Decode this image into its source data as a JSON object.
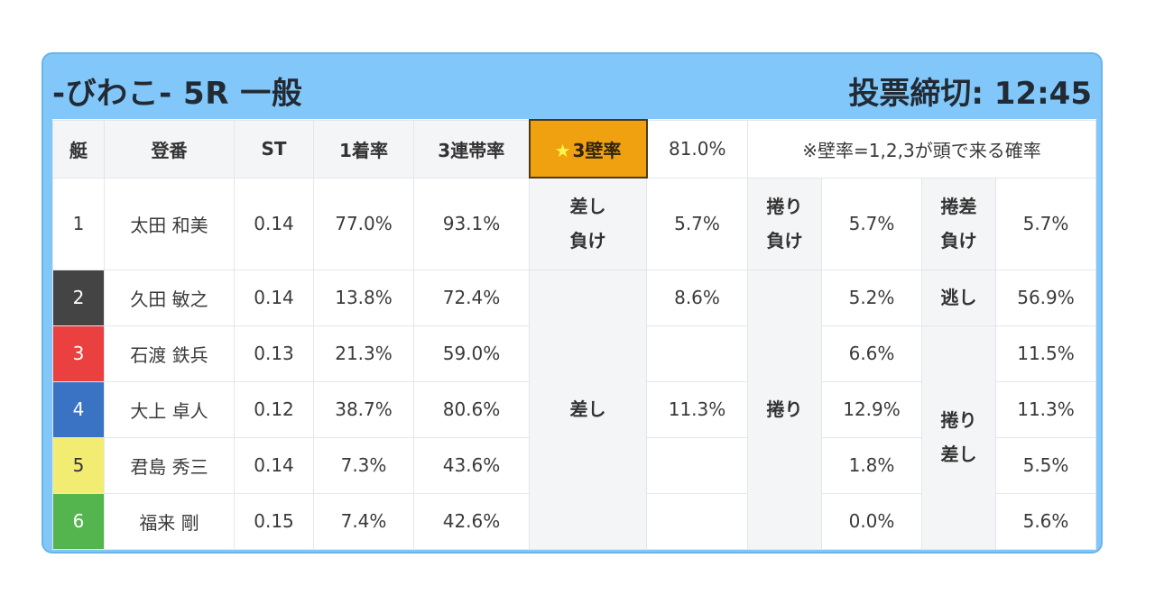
{
  "header": {
    "title": "-びわこ- 5R 一般",
    "deadline": "投票締切: 12:45"
  },
  "table": {
    "headers": {
      "boat": "艇",
      "name": "登番",
      "st": "ST",
      "first": "1着率",
      "top3": "3連帯率",
      "star_glyph": "★",
      "wall": "3壁率",
      "wall_value": "81.0%",
      "note": "※壁率=1,2,3が頭で来る確率"
    },
    "labels": {
      "sashi_make_1": "差し",
      "sashi_make_2": "負け",
      "makuri_make_1": "捲り",
      "makuri_make_2": "負け",
      "makurisashi_make_1": "捲差",
      "makurisashi_make_2": "負け",
      "nige": "逃し",
      "sashi": "差し",
      "makuri": "捲り",
      "makurisashi_1": "捲り",
      "makurisashi_2": "差し"
    },
    "rows": [
      {
        "boat": "1",
        "name": "太田 和美",
        "st": "0.14",
        "first": "77.0%",
        "top3": "93.1%",
        "sashi": "5.7%",
        "makuri": "5.7%",
        "makurisashi": "5.7%"
      },
      {
        "boat": "2",
        "name": "久田 敏之",
        "st": "0.14",
        "first": "13.8%",
        "top3": "72.4%",
        "sashi": "8.6%",
        "makuri": "5.2%",
        "makurisashi": "56.9%"
      },
      {
        "boat": "3",
        "name": "石渡 鉄兵",
        "st": "0.13",
        "first": "21.3%",
        "top3": "59.0%",
        "sashi": "",
        "makuri": "6.6%",
        "makurisashi": "11.5%"
      },
      {
        "boat": "4",
        "name": "大上 卓人",
        "st": "0.12",
        "first": "38.7%",
        "top3": "80.6%",
        "sashi": "11.3%",
        "makuri": "12.9%",
        "makurisashi": "11.3%"
      },
      {
        "boat": "5",
        "name": "君島 秀三",
        "st": "0.14",
        "first": "7.3%",
        "top3": "43.6%",
        "sashi": "",
        "makuri": "1.8%",
        "makurisashi": "5.5%"
      },
      {
        "boat": "6",
        "name": "福来 剛",
        "st": "0.15",
        "first": "7.4%",
        "top3": "42.6%",
        "sashi": "",
        "makuri": "0.0%",
        "makurisashi": "5.6%"
      }
    ]
  }
}
